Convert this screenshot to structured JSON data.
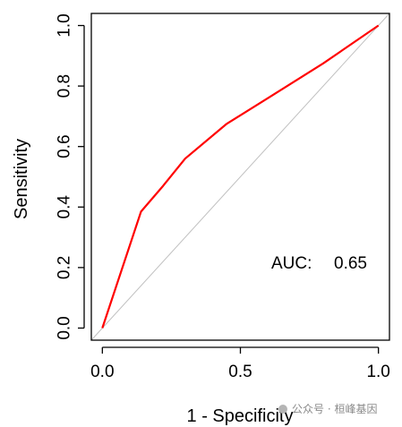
{
  "chart_data": {
    "type": "line",
    "xlabel": "1 - Specificity",
    "ylabel": "Sensitivity",
    "xlim": [
      -0.04,
      1.04
    ],
    "ylim": [
      -0.04,
      1.04
    ],
    "x_ticks": [
      "0.0",
      "0.5",
      "1.0"
    ],
    "x_tick_values": [
      0,
      0.5,
      1
    ],
    "y_ticks": [
      "0.0",
      "0.2",
      "0.4",
      "0.6",
      "0.8",
      "1.0"
    ],
    "y_tick_values": [
      0,
      0.2,
      0.4,
      0.6,
      0.8,
      1
    ],
    "series": [
      {
        "x": [
          0,
          0.14,
          0.22,
          0.3,
          0.45,
          0.6,
          0.8,
          1.0
        ],
        "y": [
          0,
          0.385,
          0.47,
          0.56,
          0.675,
          0.76,
          0.875,
          1.0
        ],
        "color": "#ff0000"
      }
    ],
    "reference_line": {
      "x": [
        -0.04,
        1.04
      ],
      "y": [
        -0.04,
        1.04
      ],
      "color": "#c0c0c0"
    },
    "annotation": {
      "label": "AUC:",
      "value": "0.65"
    },
    "grid": false,
    "legend": "none"
  },
  "watermark": {
    "text": "公众号 · 桓峰基因"
  }
}
